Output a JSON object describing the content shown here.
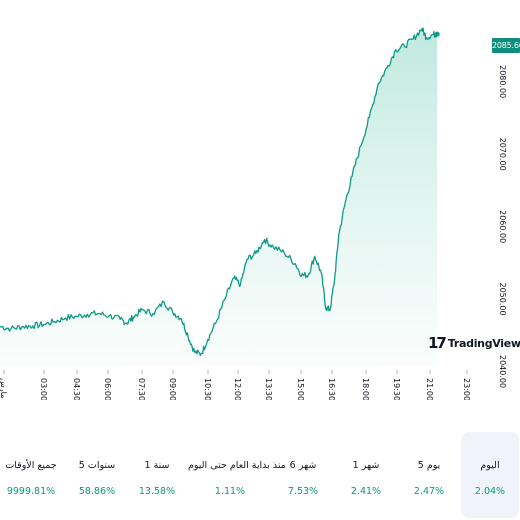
{
  "price_badge": "2085.66",
  "logo": {
    "text": "TradingView"
  },
  "colors": {
    "line": "#0e9a85",
    "fill_top": "#b8e6dc",
    "fill_bottom": "#f6fcfa",
    "axis_text": "#131722",
    "positive": "#089981",
    "active_bg": "#f0f3fa"
  },
  "chart_data": {
    "type": "area",
    "x_ticks": [
      "مارس",
      "03:00",
      "04:30",
      "06:00",
      "07:30",
      "09:00",
      "10:30",
      "12:00",
      "13:30",
      "15:00",
      "16:30",
      "18:00",
      "19:30",
      "21:00",
      "23:00"
    ],
    "y_ticks": [
      "2080.00",
      "2070.00",
      "2060.00",
      "2050.00",
      "2040.00"
    ],
    "ylim": [
      2040.0,
      2086.5
    ],
    "x_range_hours": [
      1.5,
      23.0
    ],
    "last_value": 2085.66,
    "points": [
      [
        1.5,
        2045.3
      ],
      [
        2.0,
        2045.0
      ],
      [
        2.5,
        2045.3
      ],
      [
        3.0,
        2045.4
      ],
      [
        3.5,
        2045.6
      ],
      [
        4.0,
        2046.0
      ],
      [
        4.5,
        2046.5
      ],
      [
        5.0,
        2046.7
      ],
      [
        5.5,
        2047.0
      ],
      [
        6.0,
        2047.1
      ],
      [
        6.5,
        2046.8
      ],
      [
        7.0,
        2046.3
      ],
      [
        7.3,
        2045.8
      ],
      [
        7.6,
        2046.6
      ],
      [
        8.0,
        2047.6
      ],
      [
        8.5,
        2047.1
      ],
      [
        9.0,
        2048.7
      ],
      [
        9.4,
        2047.3
      ],
      [
        9.8,
        2046.4
      ],
      [
        10.1,
        2044.0
      ],
      [
        10.4,
        2041.8
      ],
      [
        10.7,
        2041.5
      ],
      [
        11.0,
        2043.5
      ],
      [
        11.4,
        2046.0
      ],
      [
        11.8,
        2049.2
      ],
      [
        12.2,
        2052.0
      ],
      [
        12.5,
        2051.1
      ],
      [
        12.8,
        2054.6
      ],
      [
        13.2,
        2055.4
      ],
      [
        13.6,
        2057.3
      ],
      [
        14.0,
        2056.3
      ],
      [
        14.5,
        2055.5
      ],
      [
        15.0,
        2054.0
      ],
      [
        15.3,
        2052.4
      ],
      [
        15.6,
        2052.4
      ],
      [
        15.9,
        2055.0
      ],
      [
        16.2,
        2052.7
      ],
      [
        16.4,
        2047.9
      ],
      [
        16.6,
        2047.6
      ],
      [
        16.8,
        2051.7
      ],
      [
        17.0,
        2058.0
      ],
      [
        17.3,
        2062.5
      ],
      [
        17.6,
        2066.0
      ],
      [
        18.0,
        2070.2
      ],
      [
        18.4,
        2074.2
      ],
      [
        18.8,
        2078.8
      ],
      [
        19.2,
        2081.0
      ],
      [
        19.6,
        2083.5
      ],
      [
        20.0,
        2084.0
      ],
      [
        20.4,
        2085.0
      ],
      [
        20.8,
        2086.4
      ],
      [
        21.0,
        2085.2
      ],
      [
        21.3,
        2085.6
      ],
      [
        21.5,
        2085.66
      ]
    ]
  },
  "periods": [
    {
      "label": "جميع الأوقات",
      "value": "9999.81%"
    },
    {
      "label": "5 سنوات",
      "value": "58.86%"
    },
    {
      "label": "1 سنة",
      "value": "13.58%"
    },
    {
      "label": "منذ بداية العام حتى اليوم",
      "value": "1.11%"
    },
    {
      "label": "6 شهر",
      "value": "7.53%"
    },
    {
      "label": "1 شهر",
      "value": "2.41%"
    },
    {
      "label": "5 يوم",
      "value": "2.47%"
    },
    {
      "label": "اليوم",
      "value": "2.04%"
    }
  ]
}
